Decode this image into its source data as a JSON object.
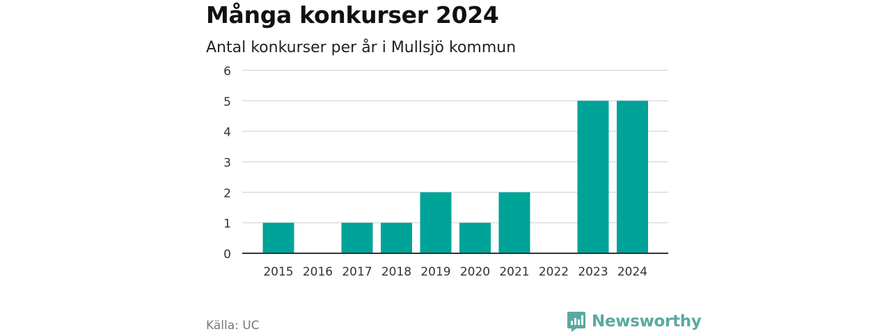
{
  "chart_title": "Många konkurser 2024",
  "chart_subtitle": "Antal konkurser per år i Mullsjö kommun",
  "source": "Källa: UC",
  "brand": {
    "name": "Newsworthy",
    "logo_icon": "newsworthy-logo-icon",
    "color": "#5aa9a0"
  },
  "bar_color": "#00a398",
  "chart_data": {
    "type": "bar",
    "title": "Många konkurser 2024",
    "subtitle": "Antal konkurser per år i Mullsjö kommun",
    "xlabel": "",
    "ylabel": "",
    "categories": [
      "2015",
      "2016",
      "2017",
      "2018",
      "2019",
      "2020",
      "2021",
      "2022",
      "2023",
      "2024"
    ],
    "values": [
      1,
      0,
      1,
      1,
      2,
      1,
      2,
      0,
      5,
      5
    ],
    "ylim": [
      0,
      6
    ],
    "yticks": [
      "0",
      "1",
      "2",
      "3",
      "4",
      "5",
      "6"
    ],
    "grid": true
  }
}
